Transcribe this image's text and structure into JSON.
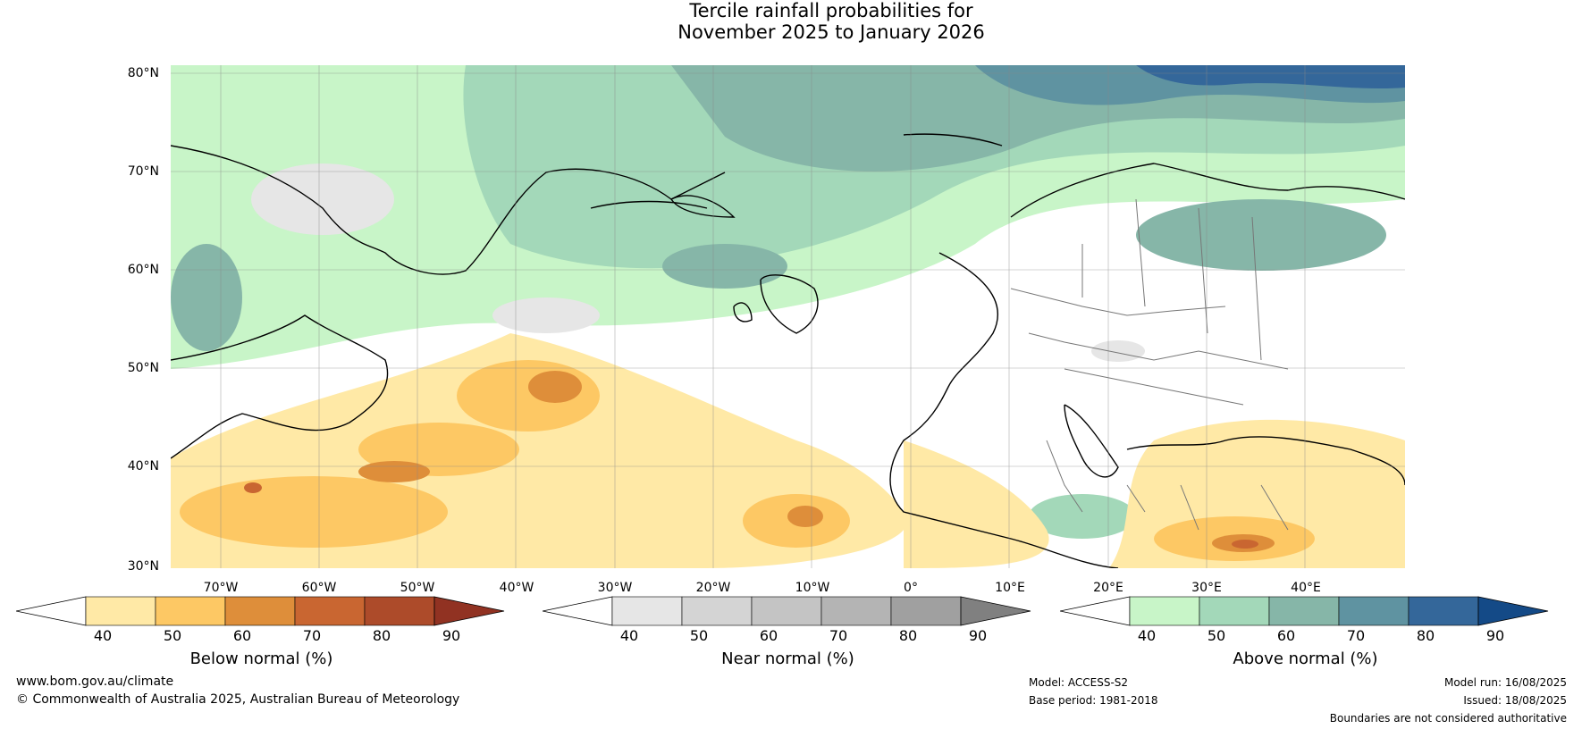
{
  "title_line1": "Tercile rainfall probabilities for",
  "title_line2": "November 2025 to January 2026",
  "lat_labels": [
    "80°N",
    "70°N",
    "60°N",
    "50°N",
    "40°N",
    "30°N"
  ],
  "lon_labels": [
    "70°W",
    "60°W",
    "50°W",
    "40°W",
    "30°W",
    "20°W",
    "10°W",
    "0°",
    "10°E",
    "20°E",
    "30°E",
    "40°E"
  ],
  "colorbars": [
    {
      "title": "Below normal (%)",
      "ticks": [
        "40",
        "50",
        "60",
        "70",
        "80",
        "90"
      ],
      "colors": [
        "#ffffff",
        "#ffe9a6",
        "#fdc864",
        "#de8e3a",
        "#c96631",
        "#ad4b2a",
        "#913222"
      ]
    },
    {
      "title": "Near normal (%)",
      "ticks": [
        "40",
        "50",
        "60",
        "70",
        "80",
        "90"
      ],
      "colors": [
        "#ffffff",
        "#e6e6e6",
        "#d4d4d4",
        "#c4c4c4",
        "#b4b4b4",
        "#a0a0a0",
        "#808080"
      ]
    },
    {
      "title": "Above normal (%)",
      "ticks": [
        "40",
        "50",
        "60",
        "70",
        "80",
        "90"
      ],
      "colors": [
        "#ffffff",
        "#c8f5c8",
        "#a3d8b9",
        "#86b6a8",
        "#5f93a1",
        "#34679a",
        "#144a87"
      ]
    }
  ],
  "footer": {
    "url": "www.bom.gov.au/climate",
    "copyright": "© Commonwealth of Australia 2025, Australian Bureau of Meteorology",
    "model": "Model: ACCESS-S2",
    "base_period": "Base period: 1981-2018",
    "model_run": "Model run: 16/08/2025",
    "issued": "Issued: 18/08/2025",
    "disclaimer": "Boundaries are not considered authoritative"
  }
}
